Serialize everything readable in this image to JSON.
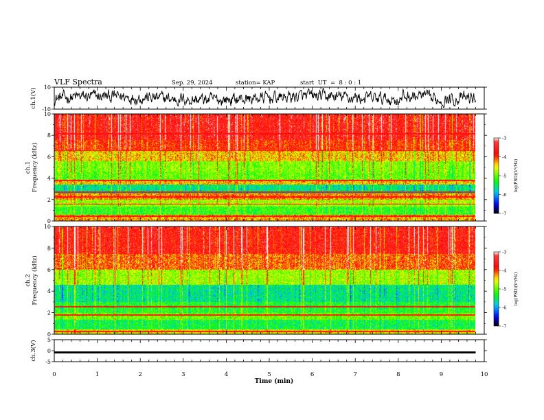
{
  "header": {
    "title": "VLF Spectra",
    "date": "Sep. 29, 2024",
    "station": "station= KAP",
    "start_ut": "start  UT  =  8 : 0 : 1"
  },
  "chart_data": [
    {
      "id": "ch1-waveform",
      "type": "line",
      "ylabel": "ch.1(V)",
      "ylim": [
        -10,
        10
      ],
      "yticks": [
        "10",
        "-10"
      ],
      "xlim": [
        0,
        10
      ],
      "series": [
        {
          "color": "#000000",
          "amplitude_range": [
            -8,
            8
          ]
        }
      ]
    },
    {
      "id": "ch1-spectrogram",
      "type": "heatmap",
      "ylabel": [
        "ch.1",
        "Frequency  (kHz)"
      ],
      "ylim": [
        0,
        10
      ],
      "yticks": [
        "0",
        "2",
        "4",
        "6",
        "8",
        "10"
      ],
      "xlim": [
        0,
        10
      ],
      "data_end_min": 9.8,
      "bands": [
        {
          "fmin": 0.0,
          "fmax": 0.6,
          "level": -4.3
        },
        {
          "fmin": 0.6,
          "fmax": 1.4,
          "level": -5.2
        },
        {
          "fmin": 1.4,
          "fmax": 2.0,
          "level": -4.8
        },
        {
          "fmin": 2.0,
          "fmax": 2.6,
          "level": -4.2
        },
        {
          "fmin": 2.6,
          "fmax": 3.4,
          "level": -5.6
        },
        {
          "fmin": 3.4,
          "fmax": 3.8,
          "level": -4.4
        },
        {
          "fmin": 3.8,
          "fmax": 4.6,
          "level": -5.0
        },
        {
          "fmin": 4.6,
          "fmax": 5.6,
          "level": -4.9
        },
        {
          "fmin": 5.6,
          "fmax": 6.6,
          "level": -4.4
        },
        {
          "fmin": 6.6,
          "fmax": 7.6,
          "level": -3.9
        },
        {
          "fmin": 7.6,
          "fmax": 10.0,
          "level": -3.6
        }
      ],
      "lines_khz": [
        0.5,
        1.6,
        2.3,
        2.7,
        3.8,
        6.6,
        8.2
      ]
    },
    {
      "id": "ch2-spectrogram",
      "type": "heatmap",
      "ylabel": [
        "ch.2",
        "Frequency  (kHz)"
      ],
      "ylim": [
        0,
        10
      ],
      "yticks": [
        "0",
        "2",
        "4",
        "6",
        "8",
        "10"
      ],
      "xlim": [
        0,
        10
      ],
      "data_end_min": 9.8,
      "bands": [
        {
          "fmin": 0.0,
          "fmax": 0.5,
          "level": -4.6
        },
        {
          "fmin": 0.5,
          "fmax": 1.4,
          "level": -5.4
        },
        {
          "fmin": 1.4,
          "fmax": 2.0,
          "level": -5.0
        },
        {
          "fmin": 2.0,
          "fmax": 3.0,
          "level": -5.3
        },
        {
          "fmin": 3.0,
          "fmax": 4.6,
          "level": -5.6
        },
        {
          "fmin": 4.6,
          "fmax": 6.0,
          "level": -4.8
        },
        {
          "fmin": 6.0,
          "fmax": 7.5,
          "level": -4.1
        },
        {
          "fmin": 7.5,
          "fmax": 10.0,
          "level": -3.7
        }
      ],
      "lines_khz": [
        0.3,
        1.8,
        2.6
      ]
    },
    {
      "id": "ch3-waveform",
      "type": "line",
      "ylabel": "ch.3(V)",
      "ylim": [
        -5,
        5
      ],
      "yticks": [
        "5",
        "0",
        "-5"
      ],
      "xlim": [
        0,
        10
      ],
      "series": [
        {
          "color": "#000000",
          "level": -0.8,
          "thickness_v": 0.9
        }
      ]
    }
  ],
  "colorbars": [
    {
      "label": "log(PSD)(V²/Hz)",
      "ticks": [
        "-3",
        "-4",
        "-5",
        "-6",
        "-7"
      ],
      "range": [
        -7,
        -3
      ]
    },
    {
      "label": "log(PSD)(V²/Hz)",
      "ticks": [
        "-3",
        "-4",
        "-5",
        "-6",
        "-7"
      ],
      "range": [
        -7,
        -3
      ]
    }
  ],
  "x_axis": {
    "label": "Time  (min)",
    "ticks": [
      "0",
      "1",
      "2",
      "3",
      "4",
      "5",
      "6",
      "7",
      "8",
      "9",
      "10"
    ]
  },
  "colors": {
    "colormap": [
      "#000000",
      "#0000ff",
      "#00c8ff",
      "#00ff00",
      "#ffff00",
      "#ff0000",
      "#ffffff"
    ]
  }
}
